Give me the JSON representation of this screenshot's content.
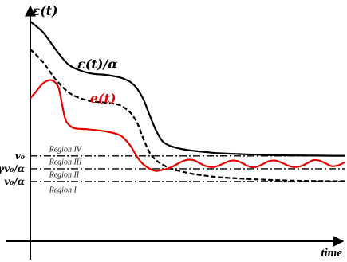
{
  "chart_data": {
    "type": "line",
    "title": "",
    "xlabel": "time",
    "ylabel": "",
    "x_range": [
      0,
      100
    ],
    "y_range": [
      0,
      100
    ],
    "grid": false,
    "legend": "inline labels",
    "y_ticks": [
      {
        "label": "v₀",
        "value": 37
      },
      {
        "label": "γv₀/α",
        "value": 31
      },
      {
        "label": "v₀/α",
        "value": 25
      }
    ],
    "reference_lines": [
      {
        "name": "v₀",
        "y": 37,
        "style": "dash-dot"
      },
      {
        "name": "γv₀/α",
        "y": 31,
        "style": "dash-dot"
      },
      {
        "name": "v₀/α",
        "y": 25,
        "style": "dash-dot"
      }
    ],
    "regions": [
      {
        "label": "Region IV",
        "x": 6,
        "y": 39
      },
      {
        "label": "Region III",
        "x": 6,
        "y": 33
      },
      {
        "label": "Region II",
        "x": 6,
        "y": 27
      },
      {
        "label": "Region I",
        "x": 6,
        "y": 20
      }
    ],
    "series": [
      {
        "name": "ε(t)",
        "color": "#000000",
        "style": "solid",
        "x": [
          0,
          4,
          8,
          12,
          16,
          20,
          24,
          28,
          30,
          32,
          34,
          36,
          38,
          40,
          42,
          44,
          46,
          48,
          50,
          52,
          56,
          60,
          66,
          72,
          80,
          88,
          96,
          100
        ],
        "y": [
          100,
          95,
          87,
          80,
          77,
          75.5,
          75,
          74,
          73,
          71.5,
          68.5,
          63.5,
          56,
          49,
          44,
          42,
          41,
          40.3,
          39.8,
          39.4,
          38.8,
          38.3,
          37.9,
          37.6,
          37.3,
          37.2,
          37.1,
          37.1
        ]
      },
      {
        "name": "ε(t)/α",
        "color": "#000000",
        "style": "dashed",
        "x": [
          0,
          4,
          8,
          12,
          16,
          20,
          24,
          28,
          30,
          32,
          34,
          36,
          38,
          40,
          42,
          44,
          46,
          48,
          50,
          52,
          56,
          60,
          66,
          72,
          80,
          88,
          96,
          100
        ],
        "y": [
          87,
          81,
          73,
          67,
          64,
          62.5,
          62,
          61,
          59.5,
          57,
          52.5,
          45,
          38.5,
          35,
          33,
          31.5,
          30.5,
          29.8,
          29.1,
          28.5,
          27.7,
          27,
          26.5,
          26,
          25.6,
          25.3,
          25.2,
          25.2
        ]
      },
      {
        "name": "e(t)",
        "color": "#e60000",
        "style": "solid",
        "x": [
          0,
          2,
          4,
          6,
          7.5,
          9,
          10,
          11,
          12,
          14,
          18,
          24,
          28,
          30,
          32,
          34,
          36,
          38,
          40,
          42,
          44,
          46,
          48,
          50,
          52,
          54,
          56,
          58,
          60,
          62,
          64,
          66,
          68,
          70,
          72,
          74,
          76,
          78,
          80,
          82,
          84,
          86,
          88,
          90,
          92,
          94,
          96,
          98,
          100
        ],
        "y": [
          64,
          67.5,
          71,
          72.5,
          72,
          69,
          62,
          55,
          52,
          50,
          49.5,
          48.5,
          47,
          45,
          41.5,
          36.5,
          33,
          31,
          30,
          30.5,
          31.2,
          32.6,
          34.2,
          35.2,
          35,
          33.5,
          32.2,
          31.8,
          32.5,
          33.8,
          34.8,
          34.6,
          33.2,
          31.9,
          31.9,
          33.2,
          34.6,
          34.8,
          33.8,
          32.5,
          31.8,
          32.2,
          33.5,
          35,
          34.8,
          33.5,
          32.2,
          32.6,
          34
        ]
      }
    ],
    "series_labels": [
      {
        "series": 0,
        "label": "ε(t)",
        "x": 0.6,
        "y": 103
      },
      {
        "series": 1,
        "label": "ε(t)/α",
        "x": 15,
        "y": 78
      },
      {
        "series": 2,
        "label": "e(t)",
        "x": 19,
        "y": 62
      }
    ]
  }
}
